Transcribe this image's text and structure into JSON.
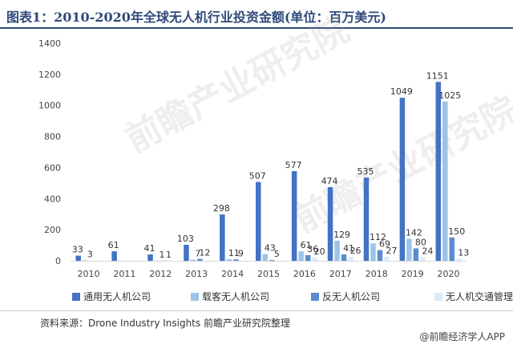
{
  "header": {
    "title": "图表1：2010-2020年全球无人机行业投资金额(单位：百万美元)"
  },
  "watermarks": [
    "前瞻产业研究院",
    "前瞻产业研究院"
  ],
  "footer": {
    "source": "资料来源：Drone Industry Insights 前瞻产业研究院整理",
    "brand": "@前瞻经济学人APP"
  },
  "colors": {
    "title": "#2f4a7a",
    "series": [
      "#4472c4",
      "#9dc3e6",
      "#5b8bd0",
      "#ddebf7"
    ]
  },
  "chart_data": {
    "type": "bar",
    "title": "",
    "xlabel": "",
    "ylabel": "",
    "ylim": [
      0,
      1400
    ],
    "yticks": [
      0,
      200,
      400,
      600,
      800,
      1000,
      1200,
      1400
    ],
    "grid": false,
    "legend_position": "bottom",
    "categories": [
      "2010",
      "2011",
      "2012",
      "2013",
      "2014",
      "2015",
      "2016",
      "2017",
      "2018",
      "2019",
      "2020"
    ],
    "series": [
      {
        "name": "通用无人机公司",
        "values": [
          33,
          61,
          41,
          103,
          298,
          507,
          577,
          474,
          535,
          1049,
          1151
        ]
      },
      {
        "name": "载客无人机公司",
        "values": [
          3,
          null,
          1,
          7,
          11,
          43,
          61,
          129,
          112,
          142,
          1025
        ]
      },
      {
        "name": "反无人机公司",
        "values": [
          null,
          null,
          1,
          12,
          9,
          5,
          36,
          41,
          69,
          80,
          150
        ]
      },
      {
        "name": "无人机交通管理公司",
        "values": [
          null,
          null,
          null,
          null,
          null,
          null,
          20,
          26,
          27,
          24,
          13
        ]
      }
    ]
  }
}
